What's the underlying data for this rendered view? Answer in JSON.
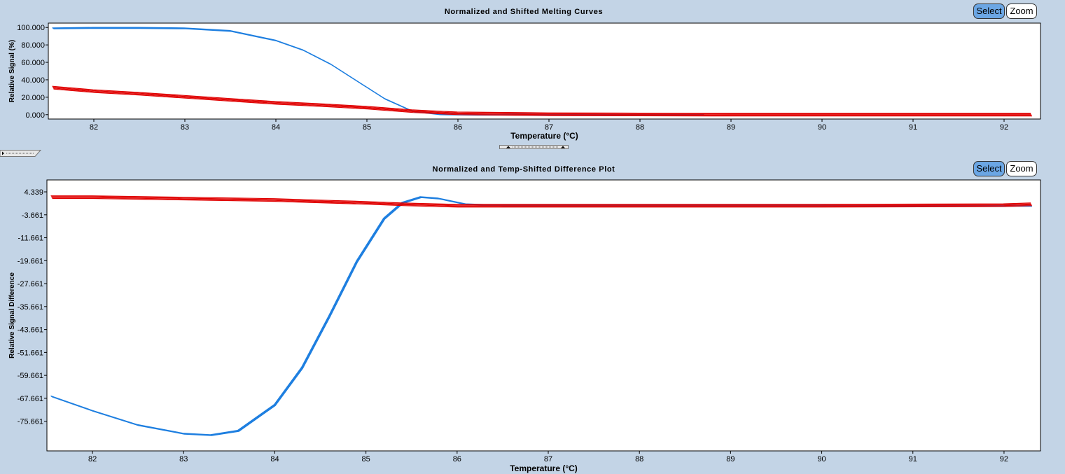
{
  "panels": [
    {
      "title": "Normalized and Shifted Melting Curves",
      "select_label": "Select",
      "zoom_label": "Zoom"
    },
    {
      "title": "Normalized and Temp-Shifted Difference Plot",
      "select_label": "Select",
      "zoom_label": "Zoom"
    }
  ],
  "colors": {
    "series_a": "#1e7fe0",
    "series_b": "#e00000",
    "background": "#c3d4e6"
  },
  "chart_data": [
    {
      "type": "line",
      "title": "Normalized and Shifted Melting Curves",
      "xlabel": "Temperature (°C)",
      "ylabel": "Relative Signal (%)",
      "xlim": [
        81.5,
        92.4
      ],
      "ylim": [
        -5,
        105
      ],
      "x_ticks": [
        "82",
        "83",
        "84",
        "85",
        "86",
        "87",
        "88",
        "89",
        "90",
        "91",
        "92"
      ],
      "y_ticks": [
        "100.000",
        "80.000",
        "60.000",
        "40.000",
        "20.000",
        "0.000"
      ],
      "grid": false,
      "series": [
        {
          "color": "blue",
          "x": [
            81.55,
            82,
            82.5,
            83,
            83.5,
            84,
            84.3,
            84.6,
            84.9,
            85.2,
            85.5,
            85.8,
            86.2,
            87,
            88,
            88.7
          ],
          "y": [
            99,
            99.5,
            99.5,
            99,
            96,
            85,
            74,
            58,
            38,
            18,
            4,
            0.5,
            0,
            0,
            0,
            0
          ]
        },
        {
          "color": "red",
          "x": [
            81.55,
            82,
            82.5,
            83,
            83.5,
            84,
            84.5,
            85,
            85.5,
            86,
            87,
            88,
            89,
            90,
            91,
            92,
            92.3
          ],
          "y": [
            31,
            27,
            24,
            20.5,
            17,
            13.5,
            11,
            8,
            4,
            1.5,
            0.5,
            0.2,
            0,
            0,
            0,
            0,
            0
          ]
        }
      ]
    },
    {
      "type": "line",
      "title": "Normalized and Temp-Shifted Difference Plot",
      "xlabel": "Temperature (°C)",
      "ylabel": "Relative Signal Difference",
      "xlim": [
        81.5,
        92.4
      ],
      "ylim": [
        -86,
        8.5
      ],
      "x_ticks": [
        "82",
        "83",
        "84",
        "85",
        "86",
        "87",
        "88",
        "89",
        "90",
        "91",
        "92"
      ],
      "y_ticks": [
        "4.339",
        "-3.661",
        "-11.661",
        "-19.661",
        "-27.661",
        "-35.661",
        "-43.661",
        "-51.661",
        "-59.661",
        "-67.661",
        "-75.661"
      ],
      "grid": false,
      "series": [
        {
          "color": "blue",
          "x": [
            81.55,
            82,
            82.5,
            83,
            83.3,
            83.6,
            84,
            84.3,
            84.6,
            84.9,
            85.2,
            85.4,
            85.6,
            85.8,
            86.1,
            86.5,
            87,
            88,
            90,
            92.3
          ],
          "y": [
            -67,
            -72,
            -77,
            -80,
            -80.5,
            -79,
            -70,
            -57,
            -39,
            -20,
            -5,
            0.5,
            2.5,
            2,
            0,
            -0.5,
            -0.5,
            -0.5,
            -0.5,
            -0.5
          ]
        },
        {
          "color": "red",
          "x": [
            81.55,
            82,
            83,
            84,
            84.5,
            85,
            85.4,
            86,
            87,
            88,
            90,
            92,
            92.3
          ],
          "y": [
            2.5,
            2.5,
            2,
            1.5,
            1,
            0.5,
            0,
            -0.5,
            -0.5,
            -0.5,
            -0.5,
            -0.3,
            0
          ]
        }
      ]
    }
  ]
}
